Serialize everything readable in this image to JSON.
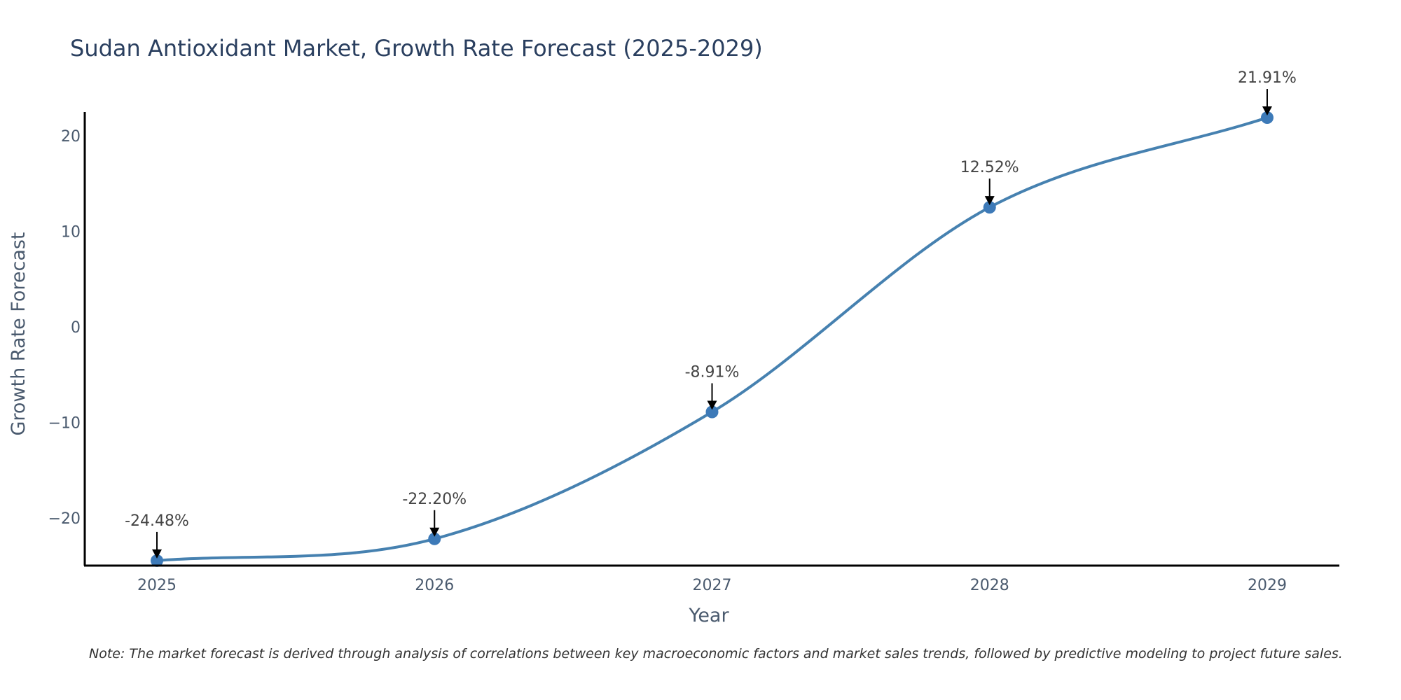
{
  "chart_data": {
    "type": "line",
    "title": "Sudan Antioxidant Market, Growth Rate Forecast (2025-2029)",
    "xlabel": "Year",
    "ylabel": "Growth Rate Forecast",
    "x": [
      "2025",
      "2026",
      "2027",
      "2028",
      "2029"
    ],
    "series": [
      {
        "name": "Growth Rate Forecast",
        "values": [
          -24.48,
          -22.2,
          -8.91,
          12.52,
          21.91
        ]
      }
    ],
    "data_labels": [
      "-24.48%",
      "-22.20%",
      "-8.91%",
      "12.52%",
      "21.91%"
    ],
    "y_ticks": [
      20,
      10,
      0,
      -10,
      -20
    ],
    "y_tick_labels": [
      "20",
      "10",
      "0",
      "−10",
      "−20"
    ],
    "ylim": [
      -25,
      22.5
    ],
    "xlim": [
      -0.26,
      4.26
    ],
    "grid": false,
    "line_color": "#4681b0",
    "marker_color": "#3d7ab8",
    "axis_color": "#000000",
    "note": "Note: The market forecast is derived through analysis of correlations between key macroeconomic factors and market sales trends, followed by predictive modeling to project future sales."
  }
}
